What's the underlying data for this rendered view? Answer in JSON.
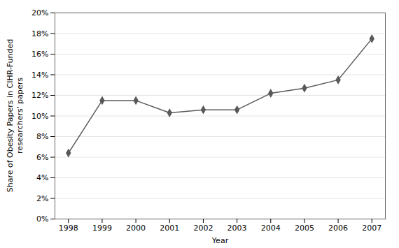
{
  "chart_data": {
    "type": "line",
    "x": [
      1998,
      1999,
      2000,
      2001,
      2002,
      2003,
      2004,
      2005,
      2006,
      2007
    ],
    "values": [
      0.064,
      0.115,
      0.115,
      0.103,
      0.106,
      0.106,
      0.122,
      0.127,
      0.135,
      0.175
    ],
    "color": "#595959",
    "marker": "diamond",
    "xlabel": "Year",
    "ylabel": "Share of Obesity Papers in CIHR-Funded\nresearchers' papers",
    "xlim": [
      1997.6,
      2007.4
    ],
    "xticks": [
      1998,
      1999,
      2000,
      2001,
      2002,
      2003,
      2004,
      2005,
      2006,
      2007
    ],
    "ylim": [
      0,
      0.2
    ],
    "yticks": [
      {
        "value": 0.0,
        "label": "0%"
      },
      {
        "value": 0.02,
        "label": "2%"
      },
      {
        "value": 0.04,
        "label": "4%"
      },
      {
        "value": 0.06,
        "label": "6%"
      },
      {
        "value": 0.08,
        "label": "8%"
      },
      {
        "value": 0.1,
        "label": "10%"
      },
      {
        "value": 0.12,
        "label": "12%"
      },
      {
        "value": 0.14,
        "label": "14%"
      },
      {
        "value": 0.16,
        "label": "16%"
      },
      {
        "value": 0.18,
        "label": "18%"
      },
      {
        "value": 0.2,
        "label": "20%"
      }
    ],
    "grid": "y"
  }
}
